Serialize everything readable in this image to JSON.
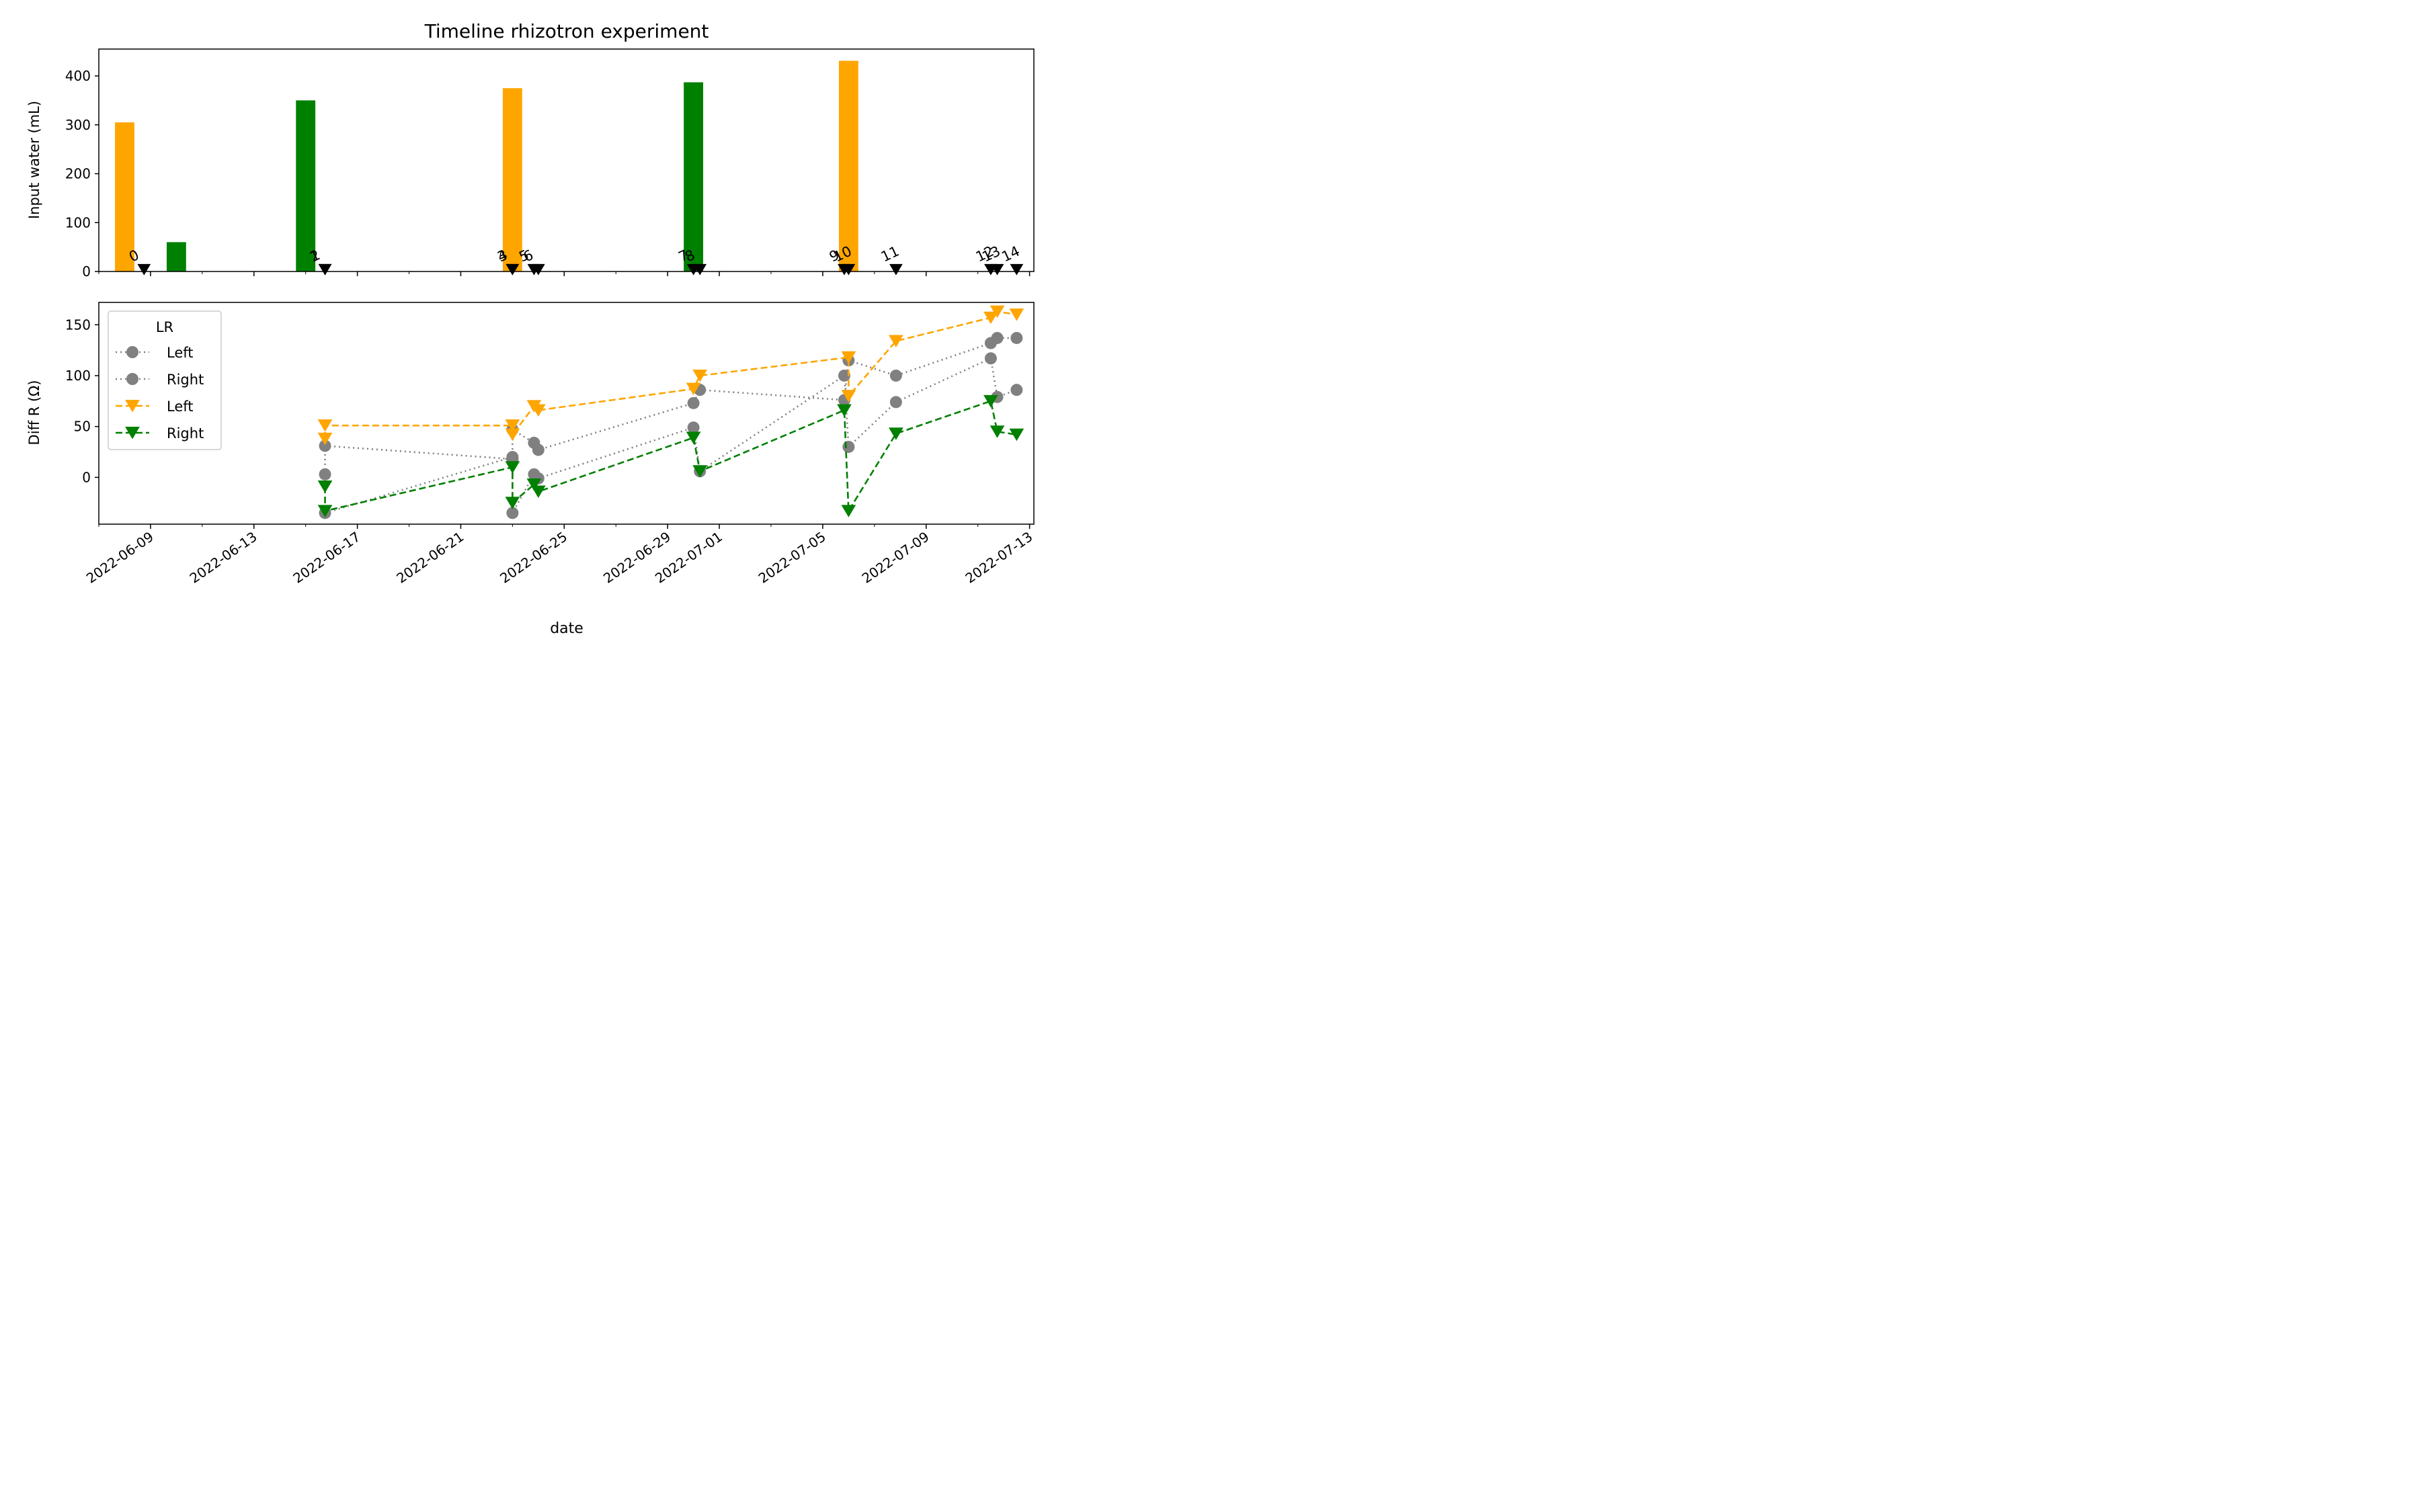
{
  "chart_data": [
    {
      "type": "bar",
      "title": "Timeline rhizotron experiment",
      "ylabel": "Input water (mL)",
      "ylim": [
        0,
        455
      ],
      "yticks": [
        0,
        100,
        200,
        300,
        400
      ],
      "bars": [
        {
          "date": "2022-06-08",
          "value": 305,
          "color": "#ffa500"
        },
        {
          "date": "2022-06-10",
          "value": 60,
          "color": "#008000"
        },
        {
          "date": "2022-06-15",
          "value": 350,
          "color": "#008000"
        },
        {
          "date": "2022-06-23",
          "value": 375,
          "color": "#ffa500"
        },
        {
          "date": "2022-06-30",
          "value": 387,
          "color": "#008000"
        },
        {
          "date": "2022-07-06",
          "value": 431,
          "color": "#ffa500"
        }
      ],
      "events": [
        {
          "label": "0",
          "date": "2022-06-08 18:00"
        },
        {
          "label": "1",
          "date": "2022-06-15 18:00"
        },
        {
          "label": "2",
          "date": "2022-06-15 18:00"
        },
        {
          "label": "3",
          "date": "2022-06-23 00:00"
        },
        {
          "label": "4",
          "date": "2022-06-23 00:00"
        },
        {
          "label": "5",
          "date": "2022-06-23 20:00"
        },
        {
          "label": "6",
          "date": "2022-06-24 00:00"
        },
        {
          "label": "7",
          "date": "2022-06-30 00:00"
        },
        {
          "label": "8",
          "date": "2022-06-30 06:00"
        },
        {
          "label": "9",
          "date": "2022-07-05 20:00"
        },
        {
          "label": "10",
          "date": "2022-07-06 00:00"
        },
        {
          "label": "11",
          "date": "2022-07-07 20:00"
        },
        {
          "label": "12",
          "date": "2022-07-11 12:00"
        },
        {
          "label": "13",
          "date": "2022-07-11 18:00"
        },
        {
          "label": "14",
          "date": "2022-07-12 12:00"
        }
      ]
    },
    {
      "type": "line",
      "xlabel": "date",
      "ylabel": "Diff R (Ω)",
      "ylim": [
        -46,
        172
      ],
      "yticks": [
        0,
        50,
        100,
        150
      ],
      "xticks": [
        "2022-06-09",
        "2022-06-13",
        "2022-06-17",
        "2022-06-21",
        "2022-06-25",
        "2022-06-29",
        "2022-07-01",
        "2022-07-05",
        "2022-07-09",
        "2022-07-13"
      ],
      "xlim": [
        "2022-06-07 00:00",
        "2022-07-13 04:00"
      ],
      "legend": {
        "title": "LR",
        "placement": "upper-left"
      },
      "series": [
        {
          "name": "Left",
          "color": "#808080",
          "marker": "circle",
          "linestyle": "dotted",
          "points": [
            [
              "2022-06-15 18:00",
              3
            ],
            [
              "2022-06-15 18:00",
              31
            ],
            [
              "2022-06-23 00:00",
              18
            ],
            [
              "2022-06-23 00:00",
              47
            ],
            [
              "2022-06-23 20:00",
              34
            ],
            [
              "2022-06-24 00:00",
              27
            ],
            [
              "2022-06-30 00:00",
              73
            ],
            [
              "2022-06-30 06:00",
              86
            ],
            [
              "2022-07-05 20:00",
              76
            ],
            [
              "2022-07-06 00:00",
              115
            ],
            [
              "2022-07-07 20:00",
              100
            ],
            [
              "2022-07-11 12:00",
              132
            ],
            [
              "2022-07-11 18:00",
              137
            ],
            [
              "2022-07-12 12:00",
              137
            ]
          ]
        },
        {
          "name": "Right",
          "color": "#808080",
          "marker": "circle",
          "linestyle": "dotted",
          "points": [
            [
              "2022-06-15 18:00",
              -35
            ],
            [
              "2022-06-23 00:00",
              20
            ],
            [
              "2022-06-23 00:00",
              -35
            ],
            [
              "2022-06-23 20:00",
              3
            ],
            [
              "2022-06-24 00:00",
              -1
            ],
            [
              "2022-06-30 00:00",
              49
            ],
            [
              "2022-06-30 06:00",
              6
            ],
            [
              "2022-07-05 20:00",
              100
            ],
            [
              "2022-07-06 00:00",
              30
            ],
            [
              "2022-07-07 20:00",
              74
            ],
            [
              "2022-07-11 12:00",
              117
            ],
            [
              "2022-07-11 18:00",
              79
            ],
            [
              "2022-07-12 12:00",
              86
            ]
          ]
        },
        {
          "name": "Left",
          "color": "#ffa500",
          "marker": "triangle-down",
          "linestyle": "dashed",
          "points": [
            [
              "2022-06-15 18:00",
              38
            ],
            [
              "2022-06-15 18:00",
              51
            ],
            [
              "2022-06-23 00:00",
              51
            ],
            [
              "2022-06-23 00:00",
              42
            ],
            [
              "2022-06-23 20:00",
              70
            ],
            [
              "2022-06-24 00:00",
              66
            ],
            [
              "2022-06-30 00:00",
              87
            ],
            [
              "2022-06-30 06:00",
              100
            ],
            [
              "2022-07-06 00:00",
              118
            ],
            [
              "2022-07-06 00:00",
              80
            ],
            [
              "2022-07-07 20:00",
              134
            ],
            [
              "2022-07-11 12:00",
              157
            ],
            [
              "2022-07-11 18:00",
              163
            ],
            [
              "2022-07-12 12:00",
              160
            ]
          ]
        },
        {
          "name": "Right",
          "color": "#008000",
          "marker": "triangle-down",
          "linestyle": "dashed",
          "points": [
            [
              "2022-06-15 18:00",
              -9
            ],
            [
              "2022-06-15 18:00",
              -33
            ],
            [
              "2022-06-23 00:00",
              10
            ],
            [
              "2022-06-23 00:00",
              -25
            ],
            [
              "2022-06-23 20:00",
              -7
            ],
            [
              "2022-06-24 00:00",
              -14
            ],
            [
              "2022-06-30 00:00",
              39
            ],
            [
              "2022-06-30 06:00",
              6
            ],
            [
              "2022-07-05 20:00",
              66
            ],
            [
              "2022-07-06 00:00",
              -33
            ],
            [
              "2022-07-07 20:00",
              43
            ],
            [
              "2022-07-11 12:00",
              75
            ],
            [
              "2022-07-11 18:00",
              45
            ],
            [
              "2022-07-12 12:00",
              42
            ]
          ]
        }
      ]
    }
  ]
}
